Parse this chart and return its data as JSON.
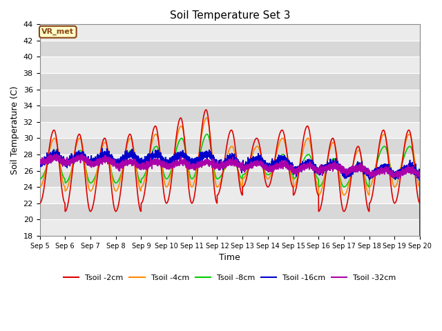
{
  "title": "Soil Temperature Set 3",
  "xlabel": "Time",
  "ylabel": "Soil Temperature (C)",
  "ylim": [
    18,
    44
  ],
  "annotation": "VR_met",
  "bg_color_light": "#ebebeb",
  "bg_color_dark": "#d8d8d8",
  "grid_color": "#ffffff",
  "xtick_labels": [
    "Sep 5",
    "Sep 6",
    "Sep 7",
    "Sep 8",
    "Sep 9",
    "Sep 10",
    "Sep 11",
    "Sep 12",
    "Sep 13",
    "Sep 14",
    "Sep 15",
    "Sep 16",
    "Sep 17",
    "Sep 18",
    "Sep 19",
    "Sep 20"
  ],
  "series": {
    "Tsoil -2cm": {
      "color": "#dd0000",
      "lw": 1.2
    },
    "Tsoil -4cm": {
      "color": "#ff8800",
      "lw": 1.2
    },
    "Tsoil -8cm": {
      "color": "#00cc00",
      "lw": 1.2
    },
    "Tsoil -16cm": {
      "color": "#0000cc",
      "lw": 1.2
    },
    "Tsoil -32cm": {
      "color": "#aa00aa",
      "lw": 1.2
    }
  }
}
